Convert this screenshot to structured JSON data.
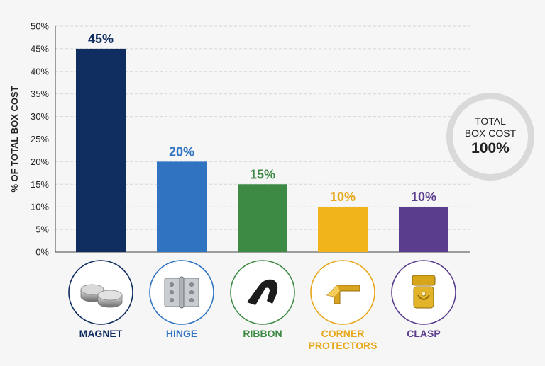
{
  "chart_data": {
    "type": "bar",
    "title": "",
    "xlabel": "",
    "ylabel": "% OF TOTAL BOX COST",
    "ylim": [
      0,
      50
    ],
    "yticks": [
      0,
      5,
      10,
      15,
      20,
      25,
      30,
      35,
      40,
      45,
      50
    ],
    "ytick_suffix": "%",
    "grid": true,
    "categories": [
      "MAGNET",
      "HINGE",
      "RIBBON",
      "CORNER PROTECTORS",
      "CLASP"
    ],
    "category_lines": [
      [
        "MAGNET"
      ],
      [
        "HINGE"
      ],
      [
        "RIBBON"
      ],
      [
        "CORNER",
        "PROTECTORS"
      ],
      [
        "CLASP"
      ]
    ],
    "values": [
      45,
      20,
      15,
      10,
      10
    ],
    "value_labels": [
      "45%",
      "20%",
      "15%",
      "10%",
      "10%"
    ],
    "colors": [
      "#0f2d5e",
      "#2f73c1",
      "#3d8a45",
      "#f2b41b",
      "#5a3d8c"
    ],
    "label_colors": [
      "#0f2d5e",
      "#2f73c1",
      "#3d8a45",
      "#e7a719",
      "#5a3d8c"
    ],
    "icons": [
      "magnet-icon",
      "hinge-icon",
      "ribbon-icon",
      "corner-protector-icon",
      "clasp-icon"
    ]
  },
  "total_badge": {
    "line1": "TOTAL",
    "line2": "BOX COST",
    "value": "100%",
    "ring_color": "#d9d9d9"
  }
}
